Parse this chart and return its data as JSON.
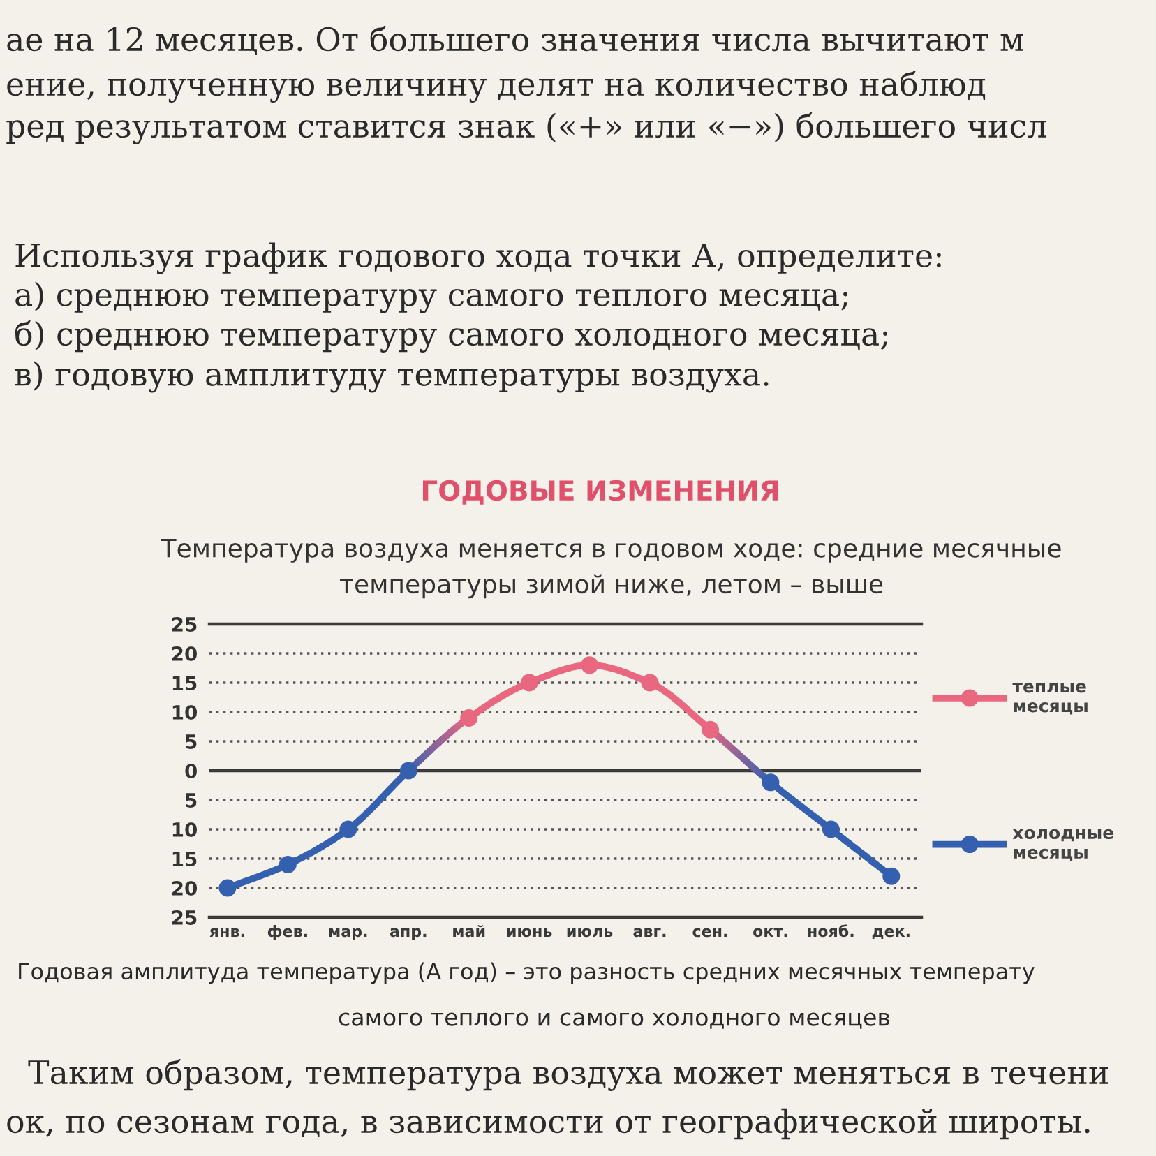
{
  "chart_data": {
    "type": "line",
    "title": "ГОДОВЫЕ ИЗМЕНЕНИЯ",
    "subtitle": "Температура воздуха меняется в годовом ходе: средние месячные\nтемпературы зимой ниже, летом – выше",
    "categories": [
      "янв.",
      "фев.",
      "мар.",
      "апр.",
      "май",
      "июнь",
      "июль",
      "авг.",
      "сен.",
      "окт.",
      "нояб.",
      "дек."
    ],
    "series": [
      {
        "name": "теплые\nмесяцы",
        "color": "#e9677f",
        "values": [
          null,
          null,
          null,
          null,
          9,
          15,
          18,
          15,
          7,
          null,
          null,
          null
        ]
      },
      {
        "name": "холодные\nмесяцы",
        "color": "#3560b0",
        "values": [
          -20,
          -16,
          -10,
          0,
          null,
          null,
          null,
          null,
          null,
          -2,
          -10,
          -18
        ]
      }
    ],
    "ylim": [
      -25,
      25
    ],
    "yticks": [
      {
        "value": -25,
        "label": "25"
      },
      {
        "value": -20,
        "label": "20"
      },
      {
        "value": -15,
        "label": "15"
      },
      {
        "value": -10,
        "label": "10"
      },
      {
        "value": -5,
        "label": "5"
      },
      0,
      5,
      10,
      15,
      20,
      25
    ],
    "ref_lines": [
      {
        "axis": "y",
        "value": 0,
        "color": "#3a3a3a"
      }
    ],
    "grid": "y",
    "legend": "right",
    "marker": "circle",
    "annotations": [
      "ае на 12 месяцев. От большего значения числа вычитают м",
      "ение, полученную величину делят на количество наблюд",
      "ред результатом ставится знак («+» или «−») большего числ",
      "Используя график годового хода точки А, определите:",
      "а) среднюю температуру самого теплого месяца;",
      "б) среднюю температуру самого холодного месяца;",
      "в) годовую амплитуду температуры воздуха.",
      "Годовая амплитуда температура (А год) – это разность средних месячных температу",
      "самого теплого и самого холодного месяцев",
      "Таким образом, температура воздуха может меняться в течени",
      "ок, по сезонам года, в зависимости от географической широты."
    ]
  }
}
